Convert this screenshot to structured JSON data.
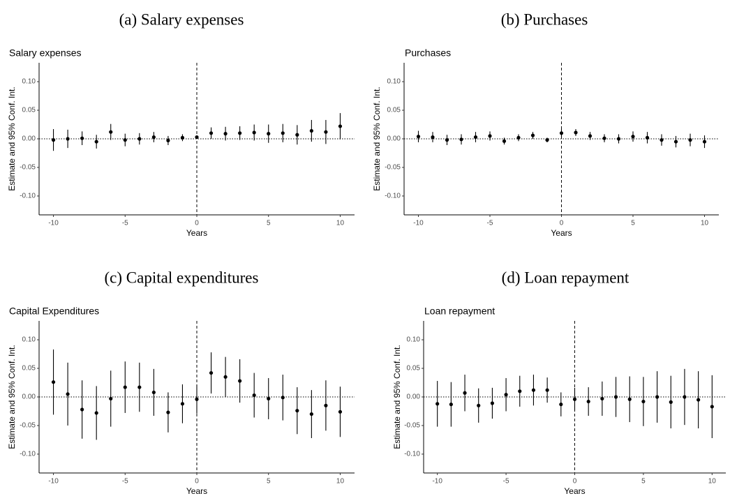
{
  "chart_data": [
    {
      "type": "errorbar",
      "caption": "(a) Salary expenses",
      "title": "Salary expenses",
      "xlabel": "Years",
      "ylabel": "Estimate and 95% Conf. Int.",
      "x": [
        -10,
        -9,
        -8,
        -7,
        -6,
        -5,
        -4,
        -3,
        -2,
        -1,
        0,
        1,
        2,
        3,
        4,
        5,
        6,
        7,
        8,
        9,
        10
      ],
      "values": [
        -0.002,
        0.0,
        0.001,
        -0.005,
        0.012,
        -0.002,
        0.0,
        0.003,
        -0.003,
        0.002,
        0.003,
        0.01,
        0.009,
        0.01,
        0.011,
        0.009,
        0.01,
        0.007,
        0.014,
        0.012,
        0.022
      ],
      "errors": [
        0.019,
        0.016,
        0.012,
        0.012,
        0.014,
        0.011,
        0.01,
        0.009,
        0.008,
        0.006,
        0.0,
        0.01,
        0.012,
        0.012,
        0.014,
        0.016,
        0.016,
        0.017,
        0.019,
        0.021,
        0.023
      ],
      "color": "#000000",
      "xlim": [
        -11,
        11
      ],
      "ylim": [
        -0.133,
        0.133
      ],
      "xticks": [
        -10,
        -5,
        0,
        5,
        10
      ],
      "yticks": [
        {
          "value": -0.1,
          "label": "-0.10"
        },
        {
          "value": -0.05,
          "label": "-0.05"
        },
        {
          "value": 0,
          "label": "0.00"
        },
        {
          "value": 0.05,
          "label": "0.05"
        },
        {
          "value": 0.1,
          "label": "0.10"
        }
      ],
      "vline": 0,
      "hline": 0
    },
    {
      "type": "errorbar",
      "caption": "(b) Purchases",
      "title": "Purchases",
      "xlabel": "Years",
      "ylabel": "Estimate and 95% Conf. Int.",
      "x": [
        -10,
        -9,
        -8,
        -7,
        -6,
        -5,
        -4,
        -3,
        -2,
        -1,
        0,
        1,
        2,
        3,
        4,
        5,
        6,
        7,
        8,
        9,
        10
      ],
      "values": [
        0.004,
        0.003,
        -0.002,
        -0.001,
        0.003,
        0.005,
        -0.004,
        0.002,
        0.006,
        -0.002,
        0.01,
        0.011,
        0.005,
        0.001,
        0.0,
        0.004,
        0.002,
        -0.002,
        -0.005,
        -0.002,
        -0.005
      ],
      "errors": [
        0.01,
        0.009,
        0.009,
        0.009,
        0.009,
        0.008,
        0.006,
        0.006,
        0.006,
        0.004,
        0.007,
        0.006,
        0.007,
        0.007,
        0.008,
        0.009,
        0.01,
        0.01,
        0.01,
        0.011,
        0.011
      ],
      "color": "#000000",
      "xlim": [
        -11,
        11
      ],
      "ylim": [
        -0.133,
        0.133
      ],
      "xticks": [
        -10,
        -5,
        0,
        5,
        10
      ],
      "yticks": [
        {
          "value": -0.1,
          "label": "-0.10"
        },
        {
          "value": -0.05,
          "label": "-0.05"
        },
        {
          "value": 0,
          "label": "0.00"
        },
        {
          "value": 0.05,
          "label": "0.05"
        },
        {
          "value": 0.1,
          "label": "0.10"
        }
      ],
      "vline": 0,
      "hline": 0
    },
    {
      "type": "errorbar",
      "caption": "(c) Capital expenditures",
      "title": "Capital Expenditures",
      "xlabel": "Years",
      "ylabel": "Estimate and 95% Conf. Int.",
      "x": [
        -10,
        -9,
        -8,
        -7,
        -6,
        -5,
        -4,
        -3,
        -2,
        -1,
        0,
        1,
        2,
        3,
        4,
        5,
        6,
        7,
        8,
        9,
        10
      ],
      "values": [
        0.026,
        0.005,
        -0.022,
        -0.028,
        -0.003,
        0.017,
        0.017,
        0.008,
        -0.027,
        -0.012,
        -0.004,
        0.042,
        0.035,
        0.028,
        0.003,
        -0.003,
        -0.001,
        -0.024,
        -0.03,
        -0.015,
        -0.026
      ],
      "errors": [
        0.057,
        0.055,
        0.051,
        0.047,
        0.049,
        0.045,
        0.043,
        0.041,
        0.035,
        0.034,
        0.025,
        0.036,
        0.035,
        0.038,
        0.039,
        0.036,
        0.04,
        0.041,
        0.042,
        0.044,
        0.044
      ],
      "color": "#000000",
      "xlim": [
        -11,
        11
      ],
      "ylim": [
        -0.133,
        0.133
      ],
      "xticks": [
        -10,
        -5,
        0,
        5,
        10
      ],
      "yticks": [
        {
          "value": -0.1,
          "label": "-0.10"
        },
        {
          "value": -0.05,
          "label": "-0.05"
        },
        {
          "value": 0,
          "label": "0.00"
        },
        {
          "value": 0.05,
          "label": "0.05"
        },
        {
          "value": 0.1,
          "label": "0.10"
        }
      ],
      "vline": 0,
      "hline": 0
    },
    {
      "type": "errorbar",
      "caption": "(d) Loan repayment",
      "title": "Loan repayment",
      "xlabel": "Years",
      "ylabel": "Estimate and 95% Conf. Int.",
      "x": [
        -10,
        -9,
        -8,
        -7,
        -6,
        -5,
        -4,
        -3,
        -2,
        -1,
        0,
        1,
        2,
        3,
        4,
        5,
        6,
        7,
        8,
        9,
        10
      ],
      "values": [
        -0.012,
        -0.013,
        0.007,
        -0.015,
        -0.011,
        0.004,
        0.01,
        0.012,
        0.012,
        -0.013,
        -0.004,
        -0.008,
        -0.003,
        0.0,
        -0.004,
        -0.008,
        0.0,
        -0.009,
        0.0,
        -0.005,
        -0.017
      ],
      "errors": [
        0.04,
        0.039,
        0.032,
        0.03,
        0.027,
        0.029,
        0.027,
        0.027,
        0.022,
        0.021,
        0.02,
        0.025,
        0.03,
        0.035,
        0.04,
        0.043,
        0.045,
        0.046,
        0.049,
        0.05,
        0.055
      ],
      "color": "#000000",
      "xlim": [
        -11,
        11
      ],
      "ylim": [
        -0.133,
        0.133
      ],
      "xticks": [
        -10,
        -5,
        0,
        5,
        10
      ],
      "yticks": [
        {
          "value": -0.1,
          "label": "-0.10"
        },
        {
          "value": -0.05,
          "label": "-0.05"
        },
        {
          "value": 0,
          "label": "0.00"
        },
        {
          "value": 0.05,
          "label": "0.05"
        },
        {
          "value": 0.1,
          "label": "0.10"
        }
      ],
      "vline": 0,
      "hline": 0
    }
  ]
}
